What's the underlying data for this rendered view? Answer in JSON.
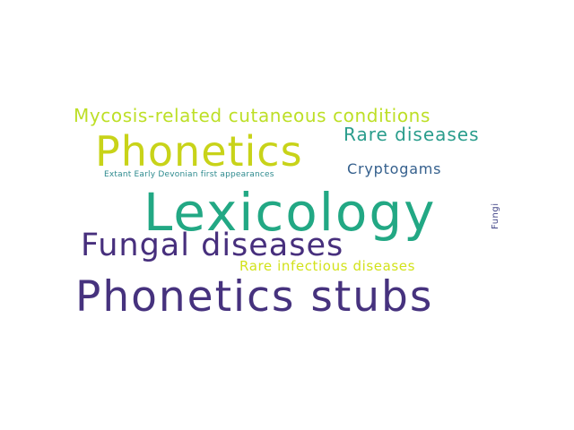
{
  "word_cloud": {
    "words": [
      {
        "text": "Lexicology",
        "color": "#22a884"
      },
      {
        "text": "Phonetics stubs",
        "color": "#46327e"
      },
      {
        "text": "Phonetics",
        "color": "#c8d319"
      },
      {
        "text": "Fungal diseases",
        "color": "#472f7d"
      },
      {
        "text": "Mycosis-related cutaneous conditions",
        "color": "#bddf26"
      },
      {
        "text": "Rare diseases",
        "color": "#2a9d8c"
      },
      {
        "text": "Cryptogams",
        "color": "#35608d"
      },
      {
        "text": "Rare infectious diseases",
        "color": "#d2e21b"
      },
      {
        "text": "Extant Early Devonian first appearances",
        "color": "#2d8a8e"
      },
      {
        "text": "Fungi",
        "color": "#414487"
      }
    ]
  }
}
